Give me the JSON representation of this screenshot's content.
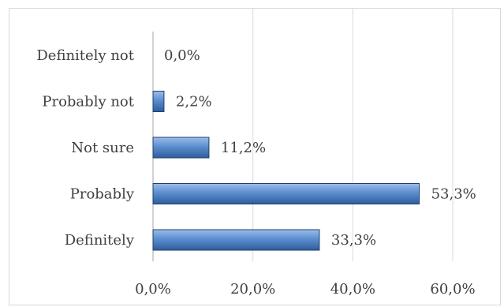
{
  "chart_data": {
    "type": "bar",
    "orientation": "horizontal",
    "categories": [
      "Definitely not",
      "Probably not",
      "Not sure",
      "Probably",
      "Definitely"
    ],
    "values": [
      0.0,
      2.2,
      11.2,
      53.3,
      33.3
    ],
    "value_labels": [
      "0,0%",
      "2,2%",
      "11,2%",
      "53,3%",
      "33,3%"
    ],
    "xlim": [
      0,
      70
    ],
    "xticks": [
      0,
      20,
      40,
      60
    ],
    "xtick_labels": [
      "0,0%",
      "20,0%",
      "40,0%",
      "60,0%"
    ],
    "grid": true,
    "title": "",
    "xlabel": "",
    "ylabel": "",
    "bar_color": "#4f81bd"
  }
}
